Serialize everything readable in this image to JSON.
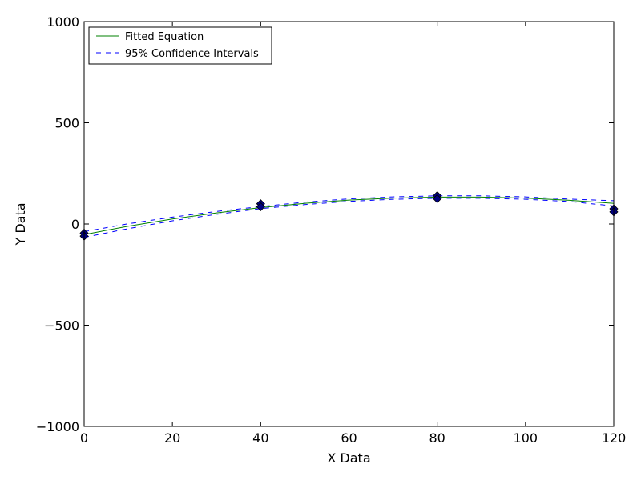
{
  "chart_data": {
    "type": "line",
    "xlabel": "X Data",
    "ylabel": "Y Data",
    "xlim": [
      0,
      120
    ],
    "ylim": [
      -1000,
      1000
    ],
    "xticks": [
      0,
      20,
      40,
      60,
      80,
      100,
      120
    ],
    "yticks": [
      -1000,
      -500,
      0,
      500,
      1000
    ],
    "xtick_labels": [
      "0",
      "20",
      "40",
      "60",
      "80",
      "100",
      "120"
    ],
    "ytick_labels": [
      "−1000",
      "−500",
      "0",
      "500",
      "1000"
    ],
    "grid": false,
    "legend_position": "top-left",
    "legend": [
      "Fitted Equation",
      "95% Confidence Intervals"
    ],
    "data_points": {
      "x": [
        0,
        0,
        40,
        40,
        80,
        80,
        120,
        120
      ],
      "y": [
        -45,
        -60,
        100,
        85,
        140,
        125,
        75,
        60
      ],
      "marker": "diamond",
      "color": "#000080"
    },
    "series": [
      {
        "name": "Fitted Equation",
        "style": "solid",
        "color": "#008000",
        "x": [
          0,
          10,
          20,
          30,
          40,
          50,
          60,
          70,
          80,
          90,
          100,
          110,
          120
        ],
        "y": [
          -52,
          -11,
          25,
          55,
          81,
          102,
          118,
          128,
          133,
          133,
          128,
          117,
          102
        ]
      },
      {
        "name": "95% Confidence Intervals",
        "style": "dashed",
        "color": "#0000ff",
        "x": [
          0,
          10,
          20,
          30,
          40,
          50,
          60,
          70,
          80,
          90,
          100,
          110,
          120
        ],
        "y": [
          -38,
          1,
          34,
          62,
          86,
          108,
          124,
          134,
          139,
          139,
          134,
          123,
          115
        ]
      },
      {
        "style": "dashed",
        "color": "#0000ff",
        "x": [
          0,
          10,
          20,
          30,
          40,
          50,
          60,
          70,
          80,
          90,
          100,
          110,
          120
        ],
        "y": [
          -66,
          -23,
          16,
          48,
          76,
          96,
          112,
          122,
          127,
          127,
          122,
          111,
          89
        ]
      }
    ]
  }
}
